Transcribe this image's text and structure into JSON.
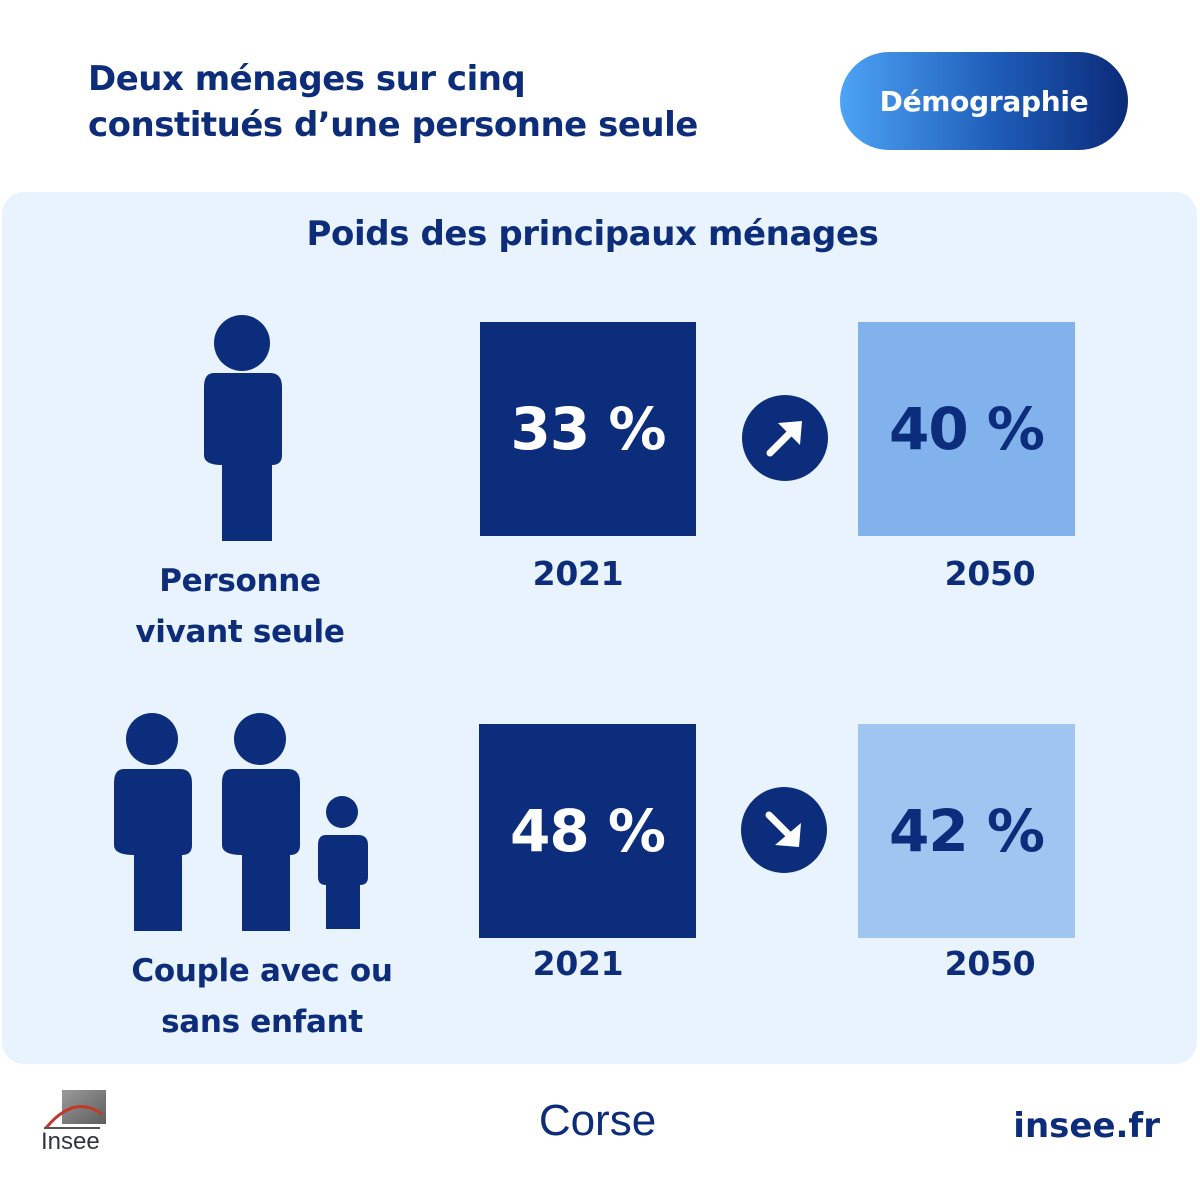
{
  "header": {
    "title_line1": "Deux ménages sur cinq",
    "title_line2": "constitués d’une personne seule",
    "badge": "Démographie"
  },
  "panel": {
    "subtitle": "Poids des principaux ménages",
    "rows": [
      {
        "label_line1": "Personne",
        "label_line2": "vivant seule",
        "icon": "single-person-icon",
        "value_start": "33 %",
        "year_start": "2021",
        "trend_icon": "arrow-up-right-icon",
        "value_end": "40 %",
        "year_end": "2050"
      },
      {
        "label_line1": "Couple avec ou",
        "label_line2": "sans enfant",
        "icon": "family-icon",
        "value_start": "48 %",
        "year_start": "2021",
        "trend_icon": "arrow-down-right-icon",
        "value_end": "42 %",
        "year_end": "2050"
      }
    ]
  },
  "footer": {
    "logo_text": "Insee",
    "region": "Corse",
    "site": "insee.fr"
  },
  "colors": {
    "navy": "#0b2d7c",
    "panel_bg": "#e8f3fd",
    "light_blue_1": "#82b2eb",
    "light_blue_2": "#a1c5f1"
  }
}
